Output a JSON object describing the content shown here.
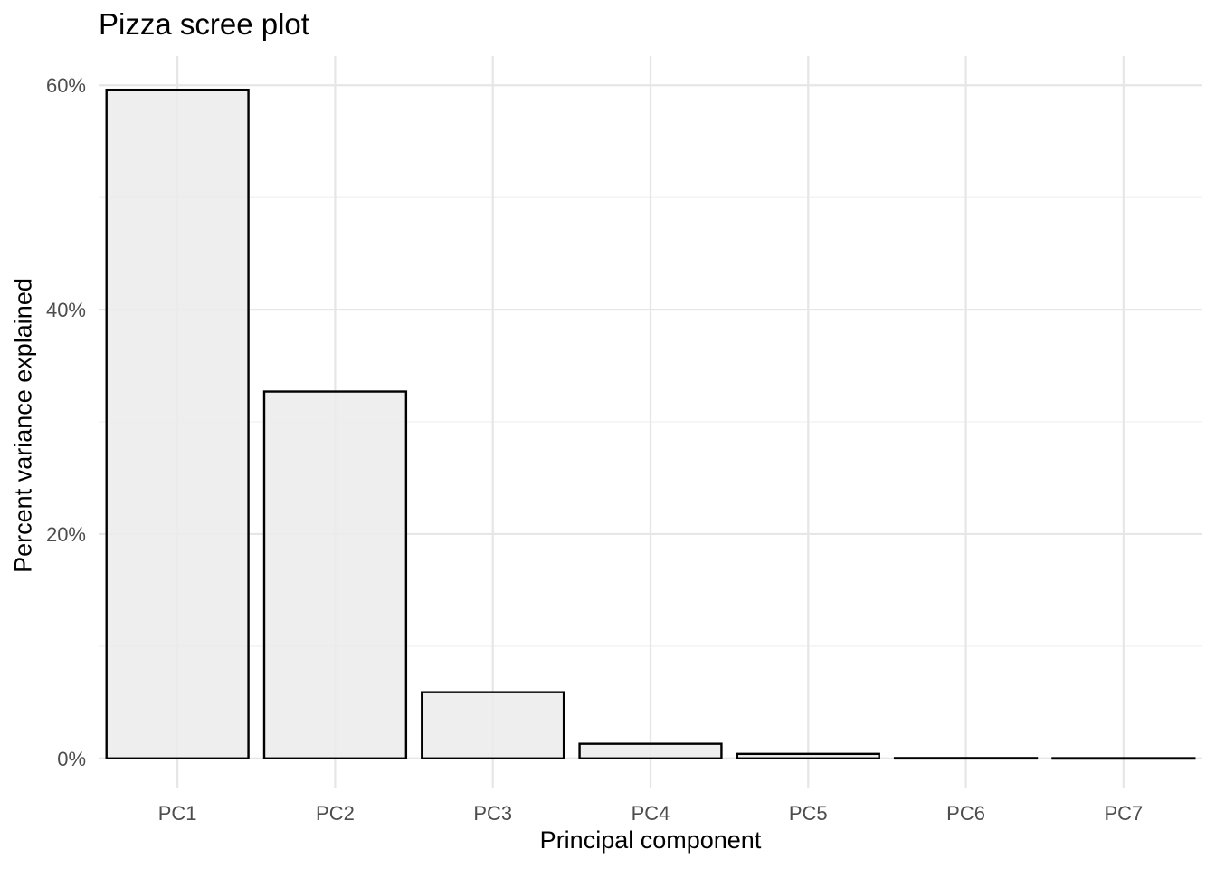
{
  "chart_data": {
    "type": "bar",
    "title": "Pizza scree plot",
    "xlabel": "Principal component",
    "ylabel": "Percent variance explained",
    "categories": [
      "PC1",
      "PC2",
      "PC3",
      "PC4",
      "PC5",
      "PC6",
      "PC7"
    ],
    "values": [
      59.6,
      32.7,
      5.9,
      1.3,
      0.4,
      0.03,
      0.02
    ],
    "ylim": [
      -2.6,
      62.6
    ],
    "y_ticks": [
      0,
      20,
      40,
      60
    ],
    "y_tick_labels": [
      "0%",
      "20%",
      "40%",
      "60%"
    ],
    "grid": true,
    "legend": "none",
    "colors": {
      "bar_fill": "#ebebeb",
      "bar_stroke": "#000000",
      "grid_major": "#e6e6e6",
      "grid_minor": "#f0f0f0",
      "tick_label": "#4d4d4d"
    }
  }
}
